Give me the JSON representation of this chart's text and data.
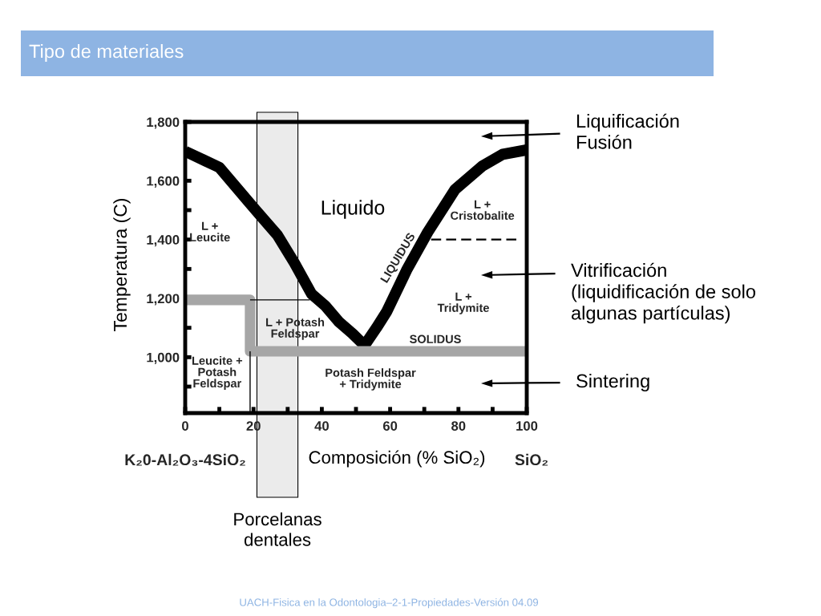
{
  "chart_data": {
    "type": "line",
    "title": "Tipo de materiales",
    "xlabel": "Composición (% SiO₂)",
    "ylabel": "Temperatura (C)",
    "xlim": [
      0,
      100
    ],
    "ylim": [
      810,
      1800
    ],
    "xticks": [
      0,
      {
        "value": 10,
        "label": null
      },
      20,
      {
        "value": 30,
        "label": null
      },
      40,
      {
        "value": 50,
        "label": null
      },
      60,
      {
        "value": 70,
        "label": null
      },
      80,
      {
        "value": 90,
        "label": null
      },
      100
    ],
    "yticks": [
      {
        "value": 900,
        "label": null
      },
      {
        "value": 1000,
        "label": "1,000"
      },
      {
        "value": 1100,
        "label": null
      },
      {
        "value": 1200,
        "label": "1,200"
      },
      {
        "value": 1300,
        "label": null
      },
      {
        "value": 1400,
        "label": "1,400"
      },
      {
        "value": 1500,
        "label": null
      },
      {
        "value": 1600,
        "label": "1,600"
      },
      {
        "value": 1700,
        "label": null
      },
      {
        "value": 1800,
        "label": "1,800"
      }
    ],
    "series": [
      {
        "color": "#000000",
        "x": [
          0,
          10,
          21,
          27,
          32,
          37,
          41,
          45,
          49,
          52.5,
          56,
          59,
          65,
          71,
          79,
          87,
          93,
          100
        ],
        "values": [
          1700,
          1645,
          1495,
          1415,
          1320,
          1215,
          1175,
          1120,
          1080,
          1040,
          1100,
          1155,
          1300,
          1425,
          1570,
          1650,
          1690,
          1705
        ]
      },
      {
        "color": "#a6a6a6",
        "x": [
          0,
          19,
          19,
          100
        ],
        "values": [
          1195,
          1195,
          1020,
          1020
        ]
      },
      {
        "color": "#000000",
        "x": [
          19,
          19
        ],
        "values": [
          1020,
          810
        ]
      },
      {
        "color": "#000000",
        "x": [
          19,
          36.5
        ],
        "values": [
          1195,
          1195
        ]
      },
      {
        "color": "#000000",
        "line_style": "dashed",
        "x": [
          72,
          97
        ],
        "values": [
          1400,
          1400
        ]
      }
    ],
    "bands": [
      {
        "axis": "x",
        "from": 21,
        "to": 33,
        "label": "Porcelanas\ndentales",
        "color": "#ebebeb"
      }
    ],
    "annotations": [
      "Liquido",
      "L +\nLeucite",
      "L +\nCristobalite",
      "LIQUIDUS",
      "L +\nTridymite",
      "L + Potash\nFeldspar",
      "SOLIDUS",
      "Leucite +\nPotash\nFeldspar",
      "Potash Feldspar\n+ Tridymite",
      "Liquificación\nFusión",
      "Vitrificación\n(liquidificación de solo\nalgunas partículas)",
      "Sintering",
      "K₂0-Al₂O₃-4SiO₂",
      "SiO₂",
      "UACH-Fisica en la Odontologia–2-1-Propiedades-Versión 04.09"
    ]
  }
}
